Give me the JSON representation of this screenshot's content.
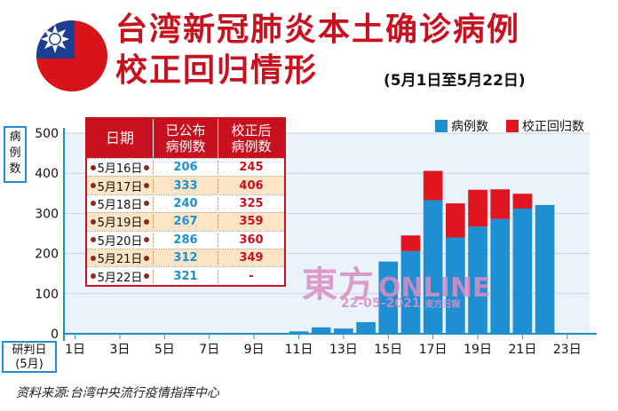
{
  "header": {
    "title_line1": "台湾新冠肺炎本土确诊病例",
    "title_line2": "校正回归情形",
    "subtitle": "(5月1日至5月22日)"
  },
  "source": "资料来源:台湾中央流行疫情指挥中心",
  "watermark": {
    "brand": "東方",
    "online": "ONLINE",
    "date": "22-05-2021",
    "suffix": "東方日報"
  },
  "colors": {
    "reported": "#1e8fd2",
    "corrected": "#e0151f",
    "title": "#c8101e"
  },
  "chart_data": {
    "type": "bar",
    "stacked": true,
    "title": "台湾新冠肺炎本土确诊病例校正回归情形",
    "ylabel": "病例数",
    "xlabel": "研判日(5月)",
    "ylim": [
      0,
      500
    ],
    "yticks": [
      0,
      100,
      200,
      300,
      400,
      500
    ],
    "grid": true,
    "legend_position": "top-right",
    "x": [
      "1日",
      "2日",
      "3日",
      "4日",
      "5日",
      "6日",
      "7日",
      "8日",
      "9日",
      "10日",
      "11日",
      "12日",
      "13日",
      "14日",
      "15日",
      "16日",
      "17日",
      "18日",
      "19日",
      "20日",
      "21日",
      "22日"
    ],
    "xticks_shown": [
      "1日",
      "3日",
      "5日",
      "7日",
      "9日",
      "11日",
      "13日",
      "15日",
      "17日",
      "19日",
      "21日",
      "23日"
    ],
    "series": [
      {
        "name": "病例数",
        "values": [
          2,
          1,
          2,
          1,
          2,
          2,
          2,
          1,
          2,
          2,
          6,
          16,
          13,
          29,
          180,
          206,
          333,
          240,
          267,
          286,
          312,
          321
        ]
      },
      {
        "name": "校正回归数",
        "values": [
          0,
          0,
          0,
          0,
          0,
          0,
          0,
          0,
          0,
          0,
          0,
          0,
          0,
          0,
          0,
          39,
          73,
          85,
          92,
          74,
          37,
          0
        ]
      }
    ],
    "table": {
      "headers": [
        "日期",
        "已公布\n病例数",
        "校正后\n病例数"
      ],
      "rows": [
        [
          "5月16日",
          "206",
          "245"
        ],
        [
          "5月17日",
          "333",
          "406"
        ],
        [
          "5月18日",
          "240",
          "325"
        ],
        [
          "5月19日",
          "267",
          "359"
        ],
        [
          "5月20日",
          "286",
          "360"
        ],
        [
          "5月21日",
          "312",
          "349"
        ],
        [
          "5月22日",
          "321",
          "-"
        ]
      ]
    }
  }
}
